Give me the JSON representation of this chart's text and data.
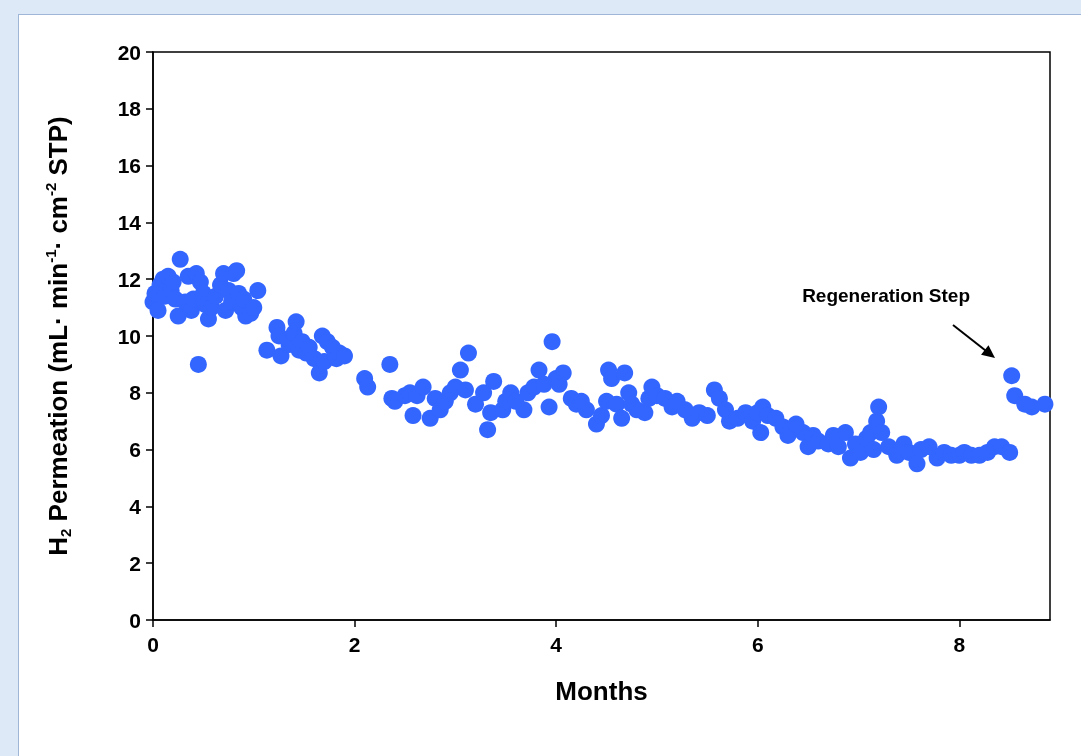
{
  "chart_data": {
    "type": "scatter",
    "xlabel": "Months",
    "ylabel": "H$_{2}$ Permeation (mL· min$^{-1}$· cm$^{-2}$ STP)",
    "series": [
      {
        "color": "#3366ff",
        "x": [
          0.0,
          0.02,
          0.05,
          0.07,
          0.1,
          0.12,
          0.15,
          0.18,
          0.2,
          0.22,
          0.25,
          0.27,
          0.32,
          0.35,
          0.38,
          0.4,
          0.43,
          0.45,
          0.47,
          0.5,
          0.52,
          0.55,
          0.58,
          0.62,
          0.67,
          0.7,
          0.72,
          0.75,
          0.78,
          0.8,
          0.83,
          0.85,
          0.88,
          0.9,
          0.92,
          0.97,
          1.0,
          1.04,
          1.13,
          1.23,
          1.25,
          1.27,
          1.35,
          1.4,
          1.42,
          1.45,
          1.48,
          1.52,
          1.55,
          1.6,
          1.65,
          1.68,
          1.7,
          1.73,
          1.78,
          1.82,
          1.85,
          1.9,
          2.1,
          2.13,
          2.35,
          2.37,
          2.4,
          2.5,
          2.55,
          2.58,
          2.62,
          2.68,
          2.75,
          2.8,
          2.85,
          2.9,
          2.95,
          3.0,
          3.05,
          3.1,
          3.13,
          3.2,
          3.28,
          3.32,
          3.35,
          3.38,
          3.47,
          3.5,
          3.55,
          3.6,
          3.68,
          3.72,
          3.78,
          3.83,
          3.88,
          3.93,
          3.96,
          4.0,
          4.03,
          4.07,
          4.15,
          4.2,
          4.25,
          4.3,
          4.4,
          4.45,
          4.5,
          4.52,
          4.55,
          4.6,
          4.65,
          4.68,
          4.72,
          4.75,
          4.8,
          4.88,
          4.92,
          4.95,
          5.0,
          5.08,
          5.15,
          5.2,
          5.28,
          5.35,
          5.42,
          5.5,
          5.57,
          5.62,
          5.68,
          5.72,
          5.8,
          5.88,
          5.95,
          6.0,
          6.03,
          6.05,
          6.1,
          6.18,
          6.25,
          6.3,
          6.38,
          6.45,
          6.5,
          6.55,
          6.6,
          6.7,
          6.75,
          6.8,
          6.87,
          6.92,
          6.97,
          7.02,
          7.08,
          7.12,
          7.15,
          7.18,
          7.2,
          7.23,
          7.3,
          7.38,
          7.45,
          7.5,
          7.58,
          7.62,
          7.7,
          7.78,
          7.85,
          7.92,
          8.0,
          8.05,
          8.12,
          8.2,
          8.28,
          8.35,
          8.42,
          8.5,
          8.52,
          8.55,
          8.65,
          8.72,
          8.85
        ],
        "values": [
          11.2,
          11.5,
          10.9,
          11.8,
          12.0,
          11.4,
          12.1,
          11.6,
          11.9,
          11.3,
          10.7,
          12.7,
          11.2,
          12.1,
          10.9,
          11.3,
          12.2,
          9.0,
          11.9,
          11.5,
          11.1,
          10.6,
          11.0,
          11.4,
          11.8,
          12.2,
          10.9,
          11.6,
          11.2,
          12.2,
          12.3,
          11.5,
          11.0,
          11.3,
          10.7,
          10.8,
          11.0,
          11.6,
          9.5,
          10.3,
          10.0,
          9.3,
          9.7,
          10.1,
          10.5,
          9.5,
          9.8,
          9.4,
          9.6,
          9.2,
          8.7,
          10.0,
          9.1,
          9.8,
          9.6,
          9.2,
          9.4,
          9.3,
          8.5,
          8.2,
          9.0,
          7.8,
          7.7,
          7.9,
          8.0,
          7.2,
          7.9,
          8.2,
          7.1,
          7.8,
          7.4,
          7.7,
          8.0,
          8.2,
          8.8,
          8.1,
          9.4,
          7.6,
          8.0,
          6.7,
          7.3,
          8.4,
          7.4,
          7.7,
          8.0,
          7.7,
          7.4,
          8.0,
          8.2,
          8.8,
          8.3,
          7.5,
          9.8,
          8.5,
          8.3,
          8.7,
          7.8,
          7.6,
          7.7,
          7.4,
          6.9,
          7.2,
          7.7,
          8.8,
          8.5,
          7.6,
          7.1,
          8.7,
          8.0,
          7.6,
          7.4,
          7.3,
          7.8,
          8.2,
          7.9,
          7.8,
          7.5,
          7.7,
          7.4,
          7.1,
          7.3,
          7.2,
          8.1,
          7.8,
          7.4,
          7.0,
          7.1,
          7.3,
          7.0,
          7.3,
          6.6,
          7.5,
          7.2,
          7.1,
          6.8,
          6.5,
          6.9,
          6.6,
          6.1,
          6.5,
          6.3,
          6.2,
          6.5,
          6.1,
          6.6,
          5.7,
          6.2,
          5.9,
          6.4,
          6.6,
          6.0,
          7.0,
          7.5,
          6.6,
          6.1,
          5.8,
          6.2,
          5.9,
          5.5,
          6.0,
          6.1,
          5.7,
          5.9,
          5.8,
          5.8,
          5.9,
          5.8,
          5.8,
          5.9,
          6.1,
          6.1,
          5.9,
          8.6,
          7.9,
          7.6,
          7.5,
          7.6
        ]
      }
    ],
    "xlim": [
      0,
      8.9
    ],
    "xticks": [
      0,
      2,
      4,
      6,
      8
    ],
    "ylim": [
      0,
      20
    ],
    "yticks": [
      0,
      2,
      4,
      6,
      8,
      10,
      12,
      14,
      16,
      18,
      20
    ],
    "grid": false,
    "marker": "circle",
    "annotations": [
      "Regeneration Step"
    ]
  }
}
